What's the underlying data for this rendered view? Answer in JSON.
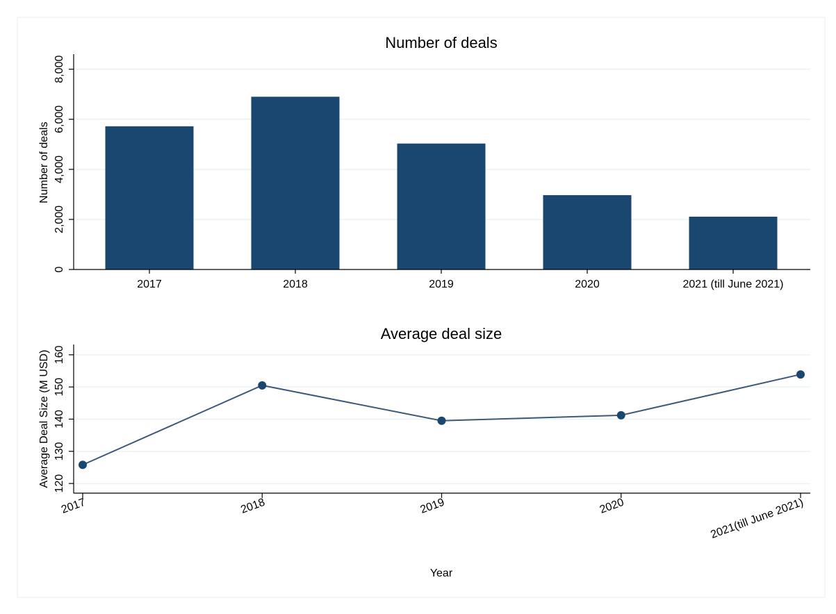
{
  "colors": {
    "bar_fill": "#1a476f",
    "line_stroke": "#3e5a77",
    "marker_fill": "#1a476f",
    "gridline": "#eaf2f3",
    "frame": "#eef4f5"
  },
  "chart_data": [
    {
      "type": "bar",
      "title": "Number of deals",
      "ylabel": "Number of deals",
      "xlabel": "",
      "categories": [
        "2017",
        "2018",
        "2019",
        "2020",
        "2021 (till June 2021)"
      ],
      "values": [
        5720,
        6900,
        5030,
        2970,
        2110
      ],
      "ylim": [
        0,
        8600
      ],
      "yticks": [
        0,
        2000,
        4000,
        6000,
        8000
      ],
      "ytick_labels": [
        "0",
        "2,000",
        "4,000",
        "6,000",
        "8,000"
      ],
      "grid": true,
      "legend": "none"
    },
    {
      "type": "line",
      "title": "Average deal size",
      "ylabel": "Average Deal Size (M USD)",
      "xlabel": "Year",
      "categories": [
        "2017",
        "2018",
        "2019",
        "2020",
        "2021(till June 2021)"
      ],
      "values": [
        125.8,
        150.5,
        139.5,
        141.2,
        153.9
      ],
      "ylim": [
        117,
        163.2
      ],
      "yticks": [
        120,
        130,
        140,
        150,
        160
      ],
      "ytick_labels": [
        "120",
        "130",
        "140",
        "150",
        "160"
      ],
      "grid": true,
      "markers": true,
      "legend": "none"
    }
  ]
}
